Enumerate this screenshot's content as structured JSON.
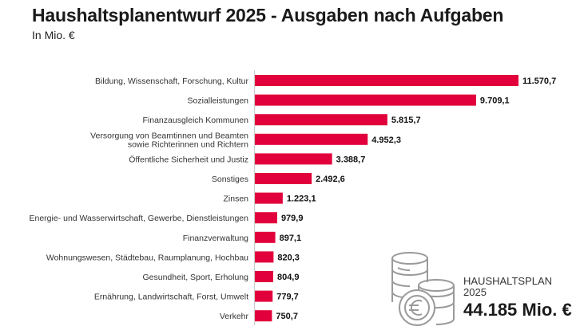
{
  "title": "Haushaltsplanentwurf 2025 - Ausgaben nach Aufgaben",
  "subtitle": "In Mio. €",
  "summary": {
    "label_line1": "HAUSHALTSPLAN",
    "label_line2": "2025",
    "total": "44.185 Mio. €",
    "icon": "coin-stack-euro-icon"
  },
  "colors": {
    "bar": "#e2003c",
    "axis": "#cccccc",
    "icon": "#9a9a9a"
  },
  "chart_data": {
    "type": "bar",
    "orientation": "horizontal",
    "title": "Haushaltsplanentwurf 2025 - Ausgaben nach Aufgaben",
    "subtitle": "In Mio. €",
    "categories": [
      [
        "Bildung, Wissenschaft, Forschung, Kultur"
      ],
      [
        "Sozialleistungen"
      ],
      [
        "Finanzausgleich Kommunen"
      ],
      [
        "Versorgung von Beamtinnen und Beamten",
        "sowie Richterinnen und Richtern"
      ],
      [
        "Öffentliche Sicherheit und Justiz"
      ],
      [
        "Sonstiges"
      ],
      [
        "Zinsen"
      ],
      [
        "Energie- und Wasserwirtschaft, Gewerbe, Dienstleistungen"
      ],
      [
        "Finanzverwaltung"
      ],
      [
        "Wohnungswesen, Städtebau, Raumplanung, Hochbau"
      ],
      [
        "Gesundheit, Sport, Erholung"
      ],
      [
        "Ernährung, Landwirtschaft, Forst, Umwelt"
      ],
      [
        "Verkehr"
      ]
    ],
    "values": [
      11570.7,
      9709.1,
      5815.7,
      4952.3,
      3388.7,
      2492.6,
      1223.1,
      979.9,
      897.1,
      820.3,
      804.9,
      779.7,
      750.7
    ],
    "labels": [
      "11.570,7",
      "9.709,1",
      "5.815,7",
      "4.952,3",
      "3.388,7",
      "2.492,6",
      "1.223,1",
      "979,9",
      "897,1",
      "820,3",
      "804,9",
      "779,7",
      "750,7"
    ],
    "xlim": [
      0,
      11570.7
    ],
    "grid": false
  }
}
